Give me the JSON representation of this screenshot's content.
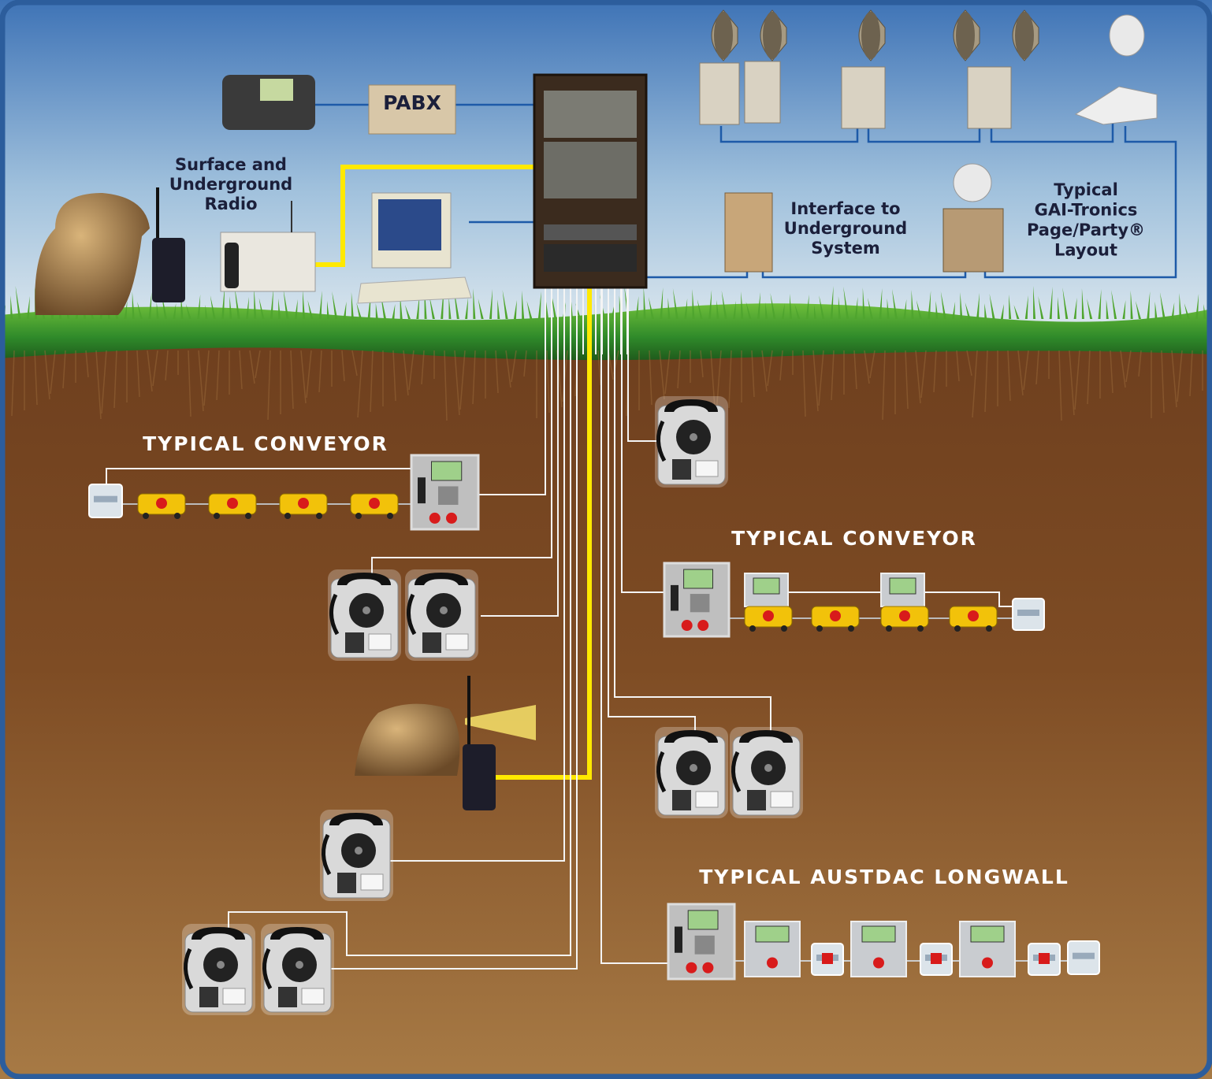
{
  "labels": {
    "pabx": "PABX",
    "radio": [
      "Surface and",
      "Underground",
      "Radio"
    ],
    "interface": [
      "Interface to",
      "Underground",
      "System"
    ],
    "page_party": [
      "Typical",
      "GAI-Tronics",
      "Page/Party®",
      "Layout"
    ]
  },
  "sections": [
    "TYPICAL CONVEYOR",
    "TYPICAL CONVEYOR",
    "TYPICAL AUSTDAC LONGWALL"
  ]
}
